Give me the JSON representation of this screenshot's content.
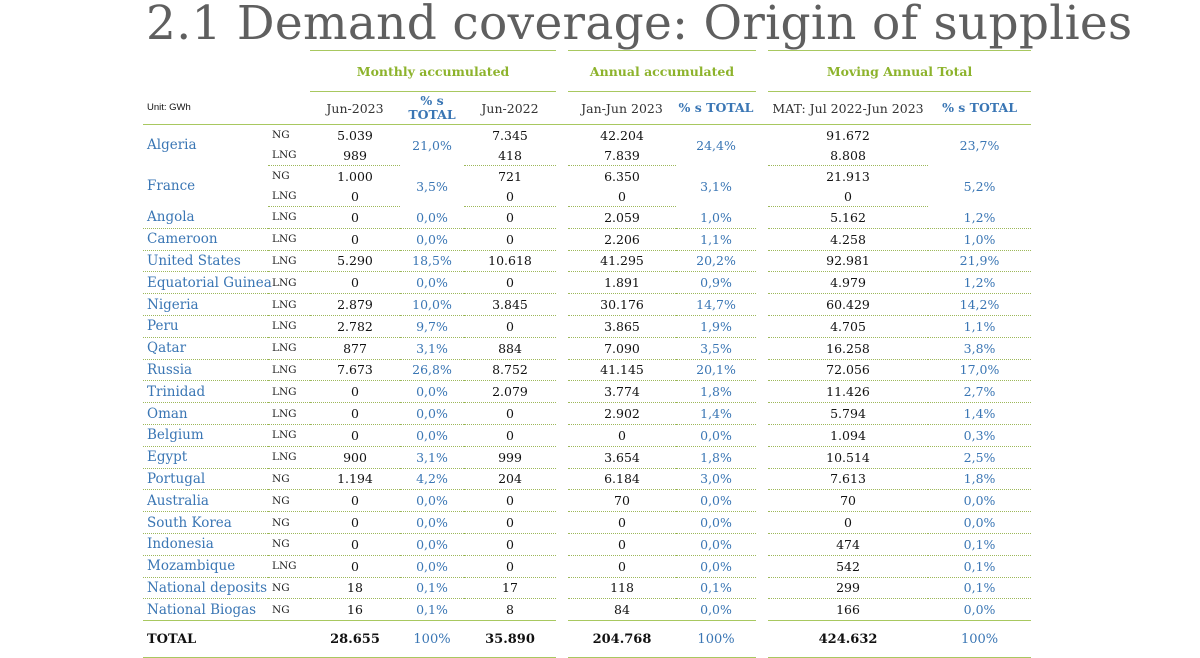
{
  "title": "2.1 Demand coverage: Origin of supplies",
  "unit": "Unit: GWh",
  "groups": {
    "monthly": "Monthly accumulated",
    "annual": "Annual accumulated",
    "mat": "Moving Annual Total"
  },
  "headers": {
    "c1": "Jun-2023",
    "c2_line1": "% s",
    "c2_line2": "TOTAL",
    "c3": "Jun-2022",
    "c4": "Jan-Jun 2023",
    "c5": "% s TOTAL",
    "c6": "MAT: Jul 2022-Jun 2023",
    "c7": "% s TOTAL"
  },
  "rows": [
    {
      "country": "Algeria",
      "pct1": "21,0%",
      "pct2": "24,4%",
      "pct3": "23,7%",
      "lines": [
        {
          "gas": "NG",
          "v1": "5.039",
          "v2": "7.345",
          "v3": "42.204",
          "v4": "91.672"
        },
        {
          "gas": "LNG",
          "v1": "989",
          "v2": "418",
          "v3": "7.839",
          "v4": "8.808"
        }
      ]
    },
    {
      "country": "France",
      "pct1": "3,5%",
      "pct2": "3,1%",
      "pct3": "5,2%",
      "lines": [
        {
          "gas": "NG",
          "v1": "1.000",
          "v2": "721",
          "v3": "6.350",
          "v4": "21.913"
        },
        {
          "gas": "LNG",
          "v1": "0",
          "v2": "0",
          "v3": "0",
          "v4": "0"
        }
      ]
    },
    {
      "country": "Angola",
      "gas": "LNG",
      "v1": "0",
      "pct1": "0,0%",
      "v2": "0",
      "v3": "2.059",
      "pct2": "1,0%",
      "v4": "5.162",
      "pct3": "1,2%"
    },
    {
      "country": "Cameroon",
      "gas": "LNG",
      "v1": "0",
      "pct1": "0,0%",
      "v2": "0",
      "v3": "2.206",
      "pct2": "1,1%",
      "v4": "4.258",
      "pct3": "1,0%"
    },
    {
      "country": "United States",
      "gas": "LNG",
      "v1": "5.290",
      "pct1": "18,5%",
      "v2": "10.618",
      "v3": "41.295",
      "pct2": "20,2%",
      "v4": "92.981",
      "pct3": "21,9%"
    },
    {
      "country": "Equatorial Guinea",
      "gas": "LNG",
      "v1": "0",
      "pct1": "0,0%",
      "v2": "0",
      "v3": "1.891",
      "pct2": "0,9%",
      "v4": "4.979",
      "pct3": "1,2%"
    },
    {
      "country": "Nigeria",
      "gas": "LNG",
      "v1": "2.879",
      "pct1": "10,0%",
      "v2": "3.845",
      "v3": "30.176",
      "pct2": "14,7%",
      "v4": "60.429",
      "pct3": "14,2%"
    },
    {
      "country": "Peru",
      "gas": "LNG",
      "v1": "2.782",
      "pct1": "9,7%",
      "v2": "0",
      "v3": "3.865",
      "pct2": "1,9%",
      "v4": "4.705",
      "pct3": "1,1%"
    },
    {
      "country": "Qatar",
      "gas": "LNG",
      "v1": "877",
      "pct1": "3,1%",
      "v2": "884",
      "v3": "7.090",
      "pct2": "3,5%",
      "v4": "16.258",
      "pct3": "3,8%"
    },
    {
      "country": "Russia",
      "gas": "LNG",
      "v1": "7.673",
      "pct1": "26,8%",
      "v2": "8.752",
      "v3": "41.145",
      "pct2": "20,1%",
      "v4": "72.056",
      "pct3": "17,0%"
    },
    {
      "country": "Trinidad",
      "gas": "LNG",
      "v1": "0",
      "pct1": "0,0%",
      "v2": "2.079",
      "v3": "3.774",
      "pct2": "1,8%",
      "v4": "11.426",
      "pct3": "2,7%"
    },
    {
      "country": "Oman",
      "gas": "LNG",
      "v1": "0",
      "pct1": "0,0%",
      "v2": "0",
      "v3": "2.902",
      "pct2": "1,4%",
      "v4": "5.794",
      "pct3": "1,4%"
    },
    {
      "country": "Belgium",
      "gas": "LNG",
      "v1": "0",
      "pct1": "0,0%",
      "v2": "0",
      "v3": "0",
      "pct2": "0,0%",
      "v4": "1.094",
      "pct3": "0,3%"
    },
    {
      "country": "Egypt",
      "gas": "LNG",
      "v1": "900",
      "pct1": "3,1%",
      "v2": "999",
      "v3": "3.654",
      "pct2": "1,8%",
      "v4": "10.514",
      "pct3": "2,5%"
    },
    {
      "country": "Portugal",
      "gas": "NG",
      "v1": "1.194",
      "pct1": "4,2%",
      "v2": "204",
      "v3": "6.184",
      "pct2": "3,0%",
      "v4": "7.613",
      "pct3": "1,8%"
    },
    {
      "country": "Australia",
      "gas": "NG",
      "v1": "0",
      "pct1": "0,0%",
      "v2": "0",
      "v3": "70",
      "pct2": "0,0%",
      "v4": "70",
      "pct3": "0,0%"
    },
    {
      "country": "South Korea",
      "gas": "NG",
      "v1": "0",
      "pct1": "0,0%",
      "v2": "0",
      "v3": "0",
      "pct2": "0,0%",
      "v4": "0",
      "pct3": "0,0%"
    },
    {
      "country": "Indonesia",
      "gas": "NG",
      "v1": "0",
      "pct1": "0,0%",
      "v2": "0",
      "v3": "0",
      "pct2": "0,0%",
      "v4": "474",
      "pct3": "0,1%"
    },
    {
      "country": "Mozambique",
      "gas": "LNG",
      "v1": "0",
      "pct1": "0,0%",
      "v2": "0",
      "v3": "0",
      "pct2": "0,0%",
      "v4": "542",
      "pct3": "0,1%"
    },
    {
      "country": "National deposits",
      "gas": "NG",
      "v1": "18",
      "pct1": "0,1%",
      "v2": "17",
      "v3": "118",
      "pct2": "0,1%",
      "v4": "299",
      "pct3": "0,1%"
    },
    {
      "country": "National Biogas",
      "gas": "NG",
      "v1": "16",
      "pct1": "0,1%",
      "v2": "8",
      "v3": "84",
      "pct2": "0,0%",
      "v4": "166",
      "pct3": "0,0%"
    }
  ],
  "total": {
    "label": "TOTAL",
    "v1": "28.655",
    "pct1": "100%",
    "v2": "35.890",
    "v3": "204.768",
    "pct2": "100%",
    "v4": "424.632",
    "pct3": "100%"
  }
}
